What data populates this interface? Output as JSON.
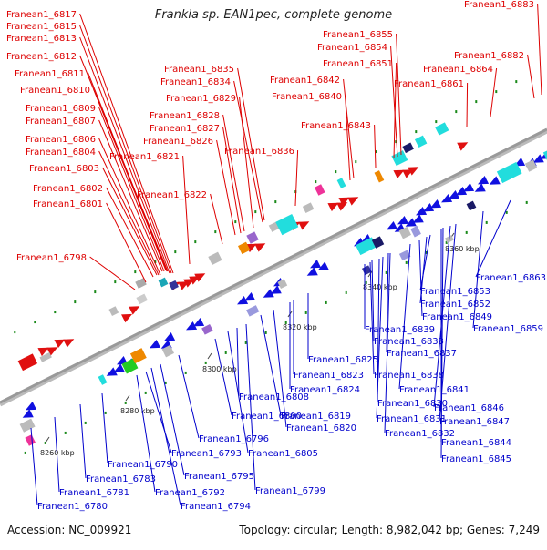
{
  "header": {
    "title": "Frankia sp. EAN1pec, complete genome"
  },
  "footer": {
    "accession": "Accession: NC_009921",
    "topology": "Topology: circular; Length: 8,982,042 bp; Genes: 7,249"
  },
  "colors": {
    "forward": "#e01010",
    "reverse": "#1010e0",
    "leader_forward": "#dd0000",
    "leader_reverse": "#0000cc",
    "backbone": "#999999"
  },
  "scale_ticks": [
    "8260 kbp",
    "8280 kbp",
    "8300 kbp",
    "8320 kbp",
    "8340 kbp",
    "8360 kbp"
  ],
  "forward_labels": [
    "Franean1_6817",
    "Franean1_6815",
    "Franean1_6813",
    "Franean1_6812",
    "Franean1_6811",
    "Franean1_6810",
    "Franean1_6809",
    "Franean1_6807",
    "Franean1_6806",
    "Franean1_6804",
    "Franean1_6803",
    "Franean1_6802",
    "Franean1_6801",
    "Franean1_6798",
    "Franean1_6821",
    "Franean1_6822",
    "Franean1_6835",
    "Franean1_6834",
    "Franean1_6829",
    "Franean1_6828",
    "Franean1_6827",
    "Franean1_6826",
    "Franean1_6836",
    "Franean1_6855",
    "Franean1_6854",
    "Franean1_6851",
    "Franean1_6842",
    "Franean1_6840",
    "Franean1_6843",
    "Franean1_6883",
    "Franean1_6882",
    "Franean1_6864",
    "Franean1_6861"
  ],
  "reverse_labels": [
    "Franean1_6863",
    "Franean1_6853",
    "Franean1_6852",
    "Franean1_6849",
    "Franean1_6859",
    "Franean1_6839",
    "Franean1_6833",
    "Franean1_6837",
    "Franean1_6825",
    "Franean1_6823",
    "Franean1_6838",
    "Franean1_6824",
    "Franean1_6841",
    "Franean1_6808",
    "Franean1_6830",
    "Franean1_6846",
    "Franean1_6800",
    "Franean1_6819",
    "Franean1_6831",
    "Franean1_6847",
    "Franean1_6820",
    "Franean1_6832",
    "Franean1_6796",
    "Franean1_6805",
    "Franean1_6844",
    "Franean1_6793",
    "Franean1_6845",
    "Franean1_6790",
    "Franean1_6795",
    "Franean1_6783",
    "Franean1_6781",
    "Franean1_6799",
    "Franean1_6792",
    "Franean1_6794",
    "Franean1_6780"
  ]
}
